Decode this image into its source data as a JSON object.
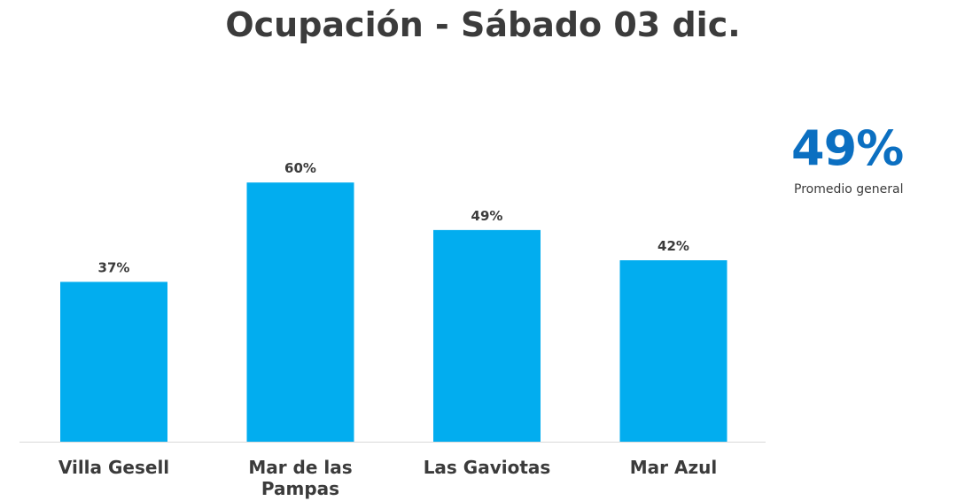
{
  "kpi": {
    "value": "49%",
    "label": "Promedio general"
  },
  "colors": {
    "bar": "#02adef",
    "kpi": "#0b6fc1",
    "text": "#3b3b3b"
  },
  "chart_data": {
    "type": "bar",
    "title": "Ocupación - Sábado 03 dic.",
    "categories": [
      [
        "Villa Gesell"
      ],
      [
        "Mar de las",
        "Pampas"
      ],
      [
        "Las Gaviotas"
      ],
      [
        "Mar Azul"
      ]
    ],
    "values": [
      37,
      60,
      49,
      42
    ],
    "value_labels": [
      "37%",
      "60%",
      "49%",
      "42%"
    ],
    "ylim": [
      0,
      100
    ],
    "grid": false,
    "legend": "none"
  }
}
